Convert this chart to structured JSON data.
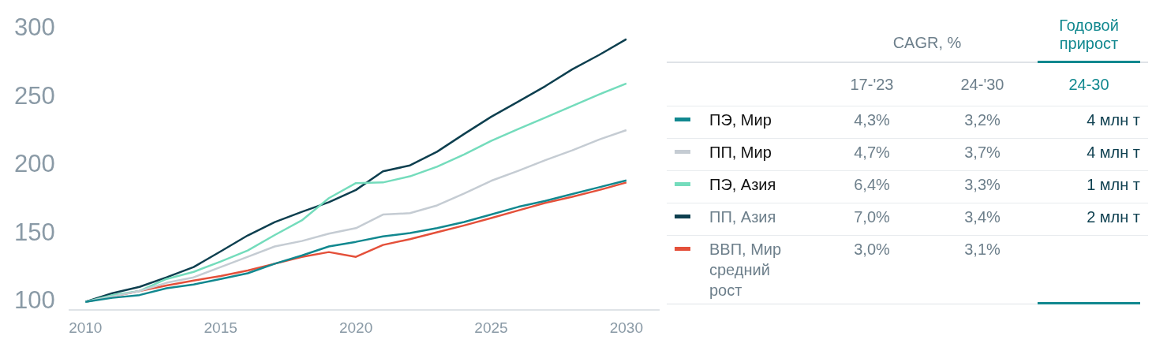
{
  "chart_data": {
    "type": "line",
    "x": [
      2010,
      2011,
      2012,
      2013,
      2014,
      2015,
      2016,
      2017,
      2018,
      2019,
      2020,
      2021,
      2022,
      2023,
      2024,
      2025,
      2026,
      2027,
      2028,
      2029,
      2030
    ],
    "series": [
      {
        "name": "ПЭ, Мир",
        "color": "#11888f",
        "values": [
          100,
          103,
          105,
          110,
          112.8,
          116.8,
          121,
          128,
          134,
          140.6,
          144,
          148,
          150.4,
          154,
          158.5,
          164,
          169.6,
          174,
          179,
          184,
          189
        ]
      },
      {
        "name": "ПП, Мир",
        "color": "#c5ccd3",
        "values": [
          100,
          104,
          108,
          114,
          118,
          125.5,
          133,
          140.6,
          144.6,
          150,
          154,
          164,
          165,
          170.7,
          179.4,
          188.7,
          196,
          203.8,
          211,
          219,
          225.8
        ]
      },
      {
        "name": "ПЭ, Азия",
        "color": "#74dcbc",
        "values": [
          100,
          105,
          108,
          116.8,
          122,
          129.6,
          137.7,
          149,
          159.7,
          176,
          187,
          187.5,
          192,
          199,
          208,
          218,
          226.6,
          235,
          243.5,
          252,
          260
        ]
      },
      {
        "name": "ПП, Азия",
        "color": "#0d3f4f",
        "values": [
          100,
          106.4,
          111,
          118,
          125.5,
          137,
          148.7,
          158.5,
          166,
          173,
          182,
          195.6,
          200,
          210,
          223,
          235.6,
          246.7,
          258,
          270.4,
          281,
          292.5
        ]
      },
      {
        "name": "ВВП, Мир средний рост",
        "color": "#e4503a",
        "values": [
          100,
          104,
          108,
          112,
          115.6,
          119,
          123,
          128,
          133,
          136.5,
          133,
          141.7,
          146,
          151,
          156,
          161.4,
          167,
          172.5,
          177,
          182,
          187.5
        ]
      }
    ],
    "xlim": [
      2009.4,
      2031.2
    ],
    "xticks": [
      2010,
      2015,
      2020,
      2025,
      2030
    ],
    "ylim": [
      94,
      300
    ],
    "yticks": [
      100,
      150,
      200,
      250,
      300
    ],
    "grid": false,
    "legend": "right",
    "marker": "none",
    "line_style": "solid",
    "annotations": [
      "CAGR, %",
      "Годовой прирост",
      "17-'23",
      "24-'30",
      "24-30",
      "4,3%",
      "3,2%",
      "4 млн т",
      "4,7%",
      "3,7%",
      "4 млн т",
      "6,4%",
      "3,3%",
      "1 млн т",
      "7,0%",
      "3,4%",
      "2 млн т",
      "3,0%",
      "3,1%"
    ]
  }
}
